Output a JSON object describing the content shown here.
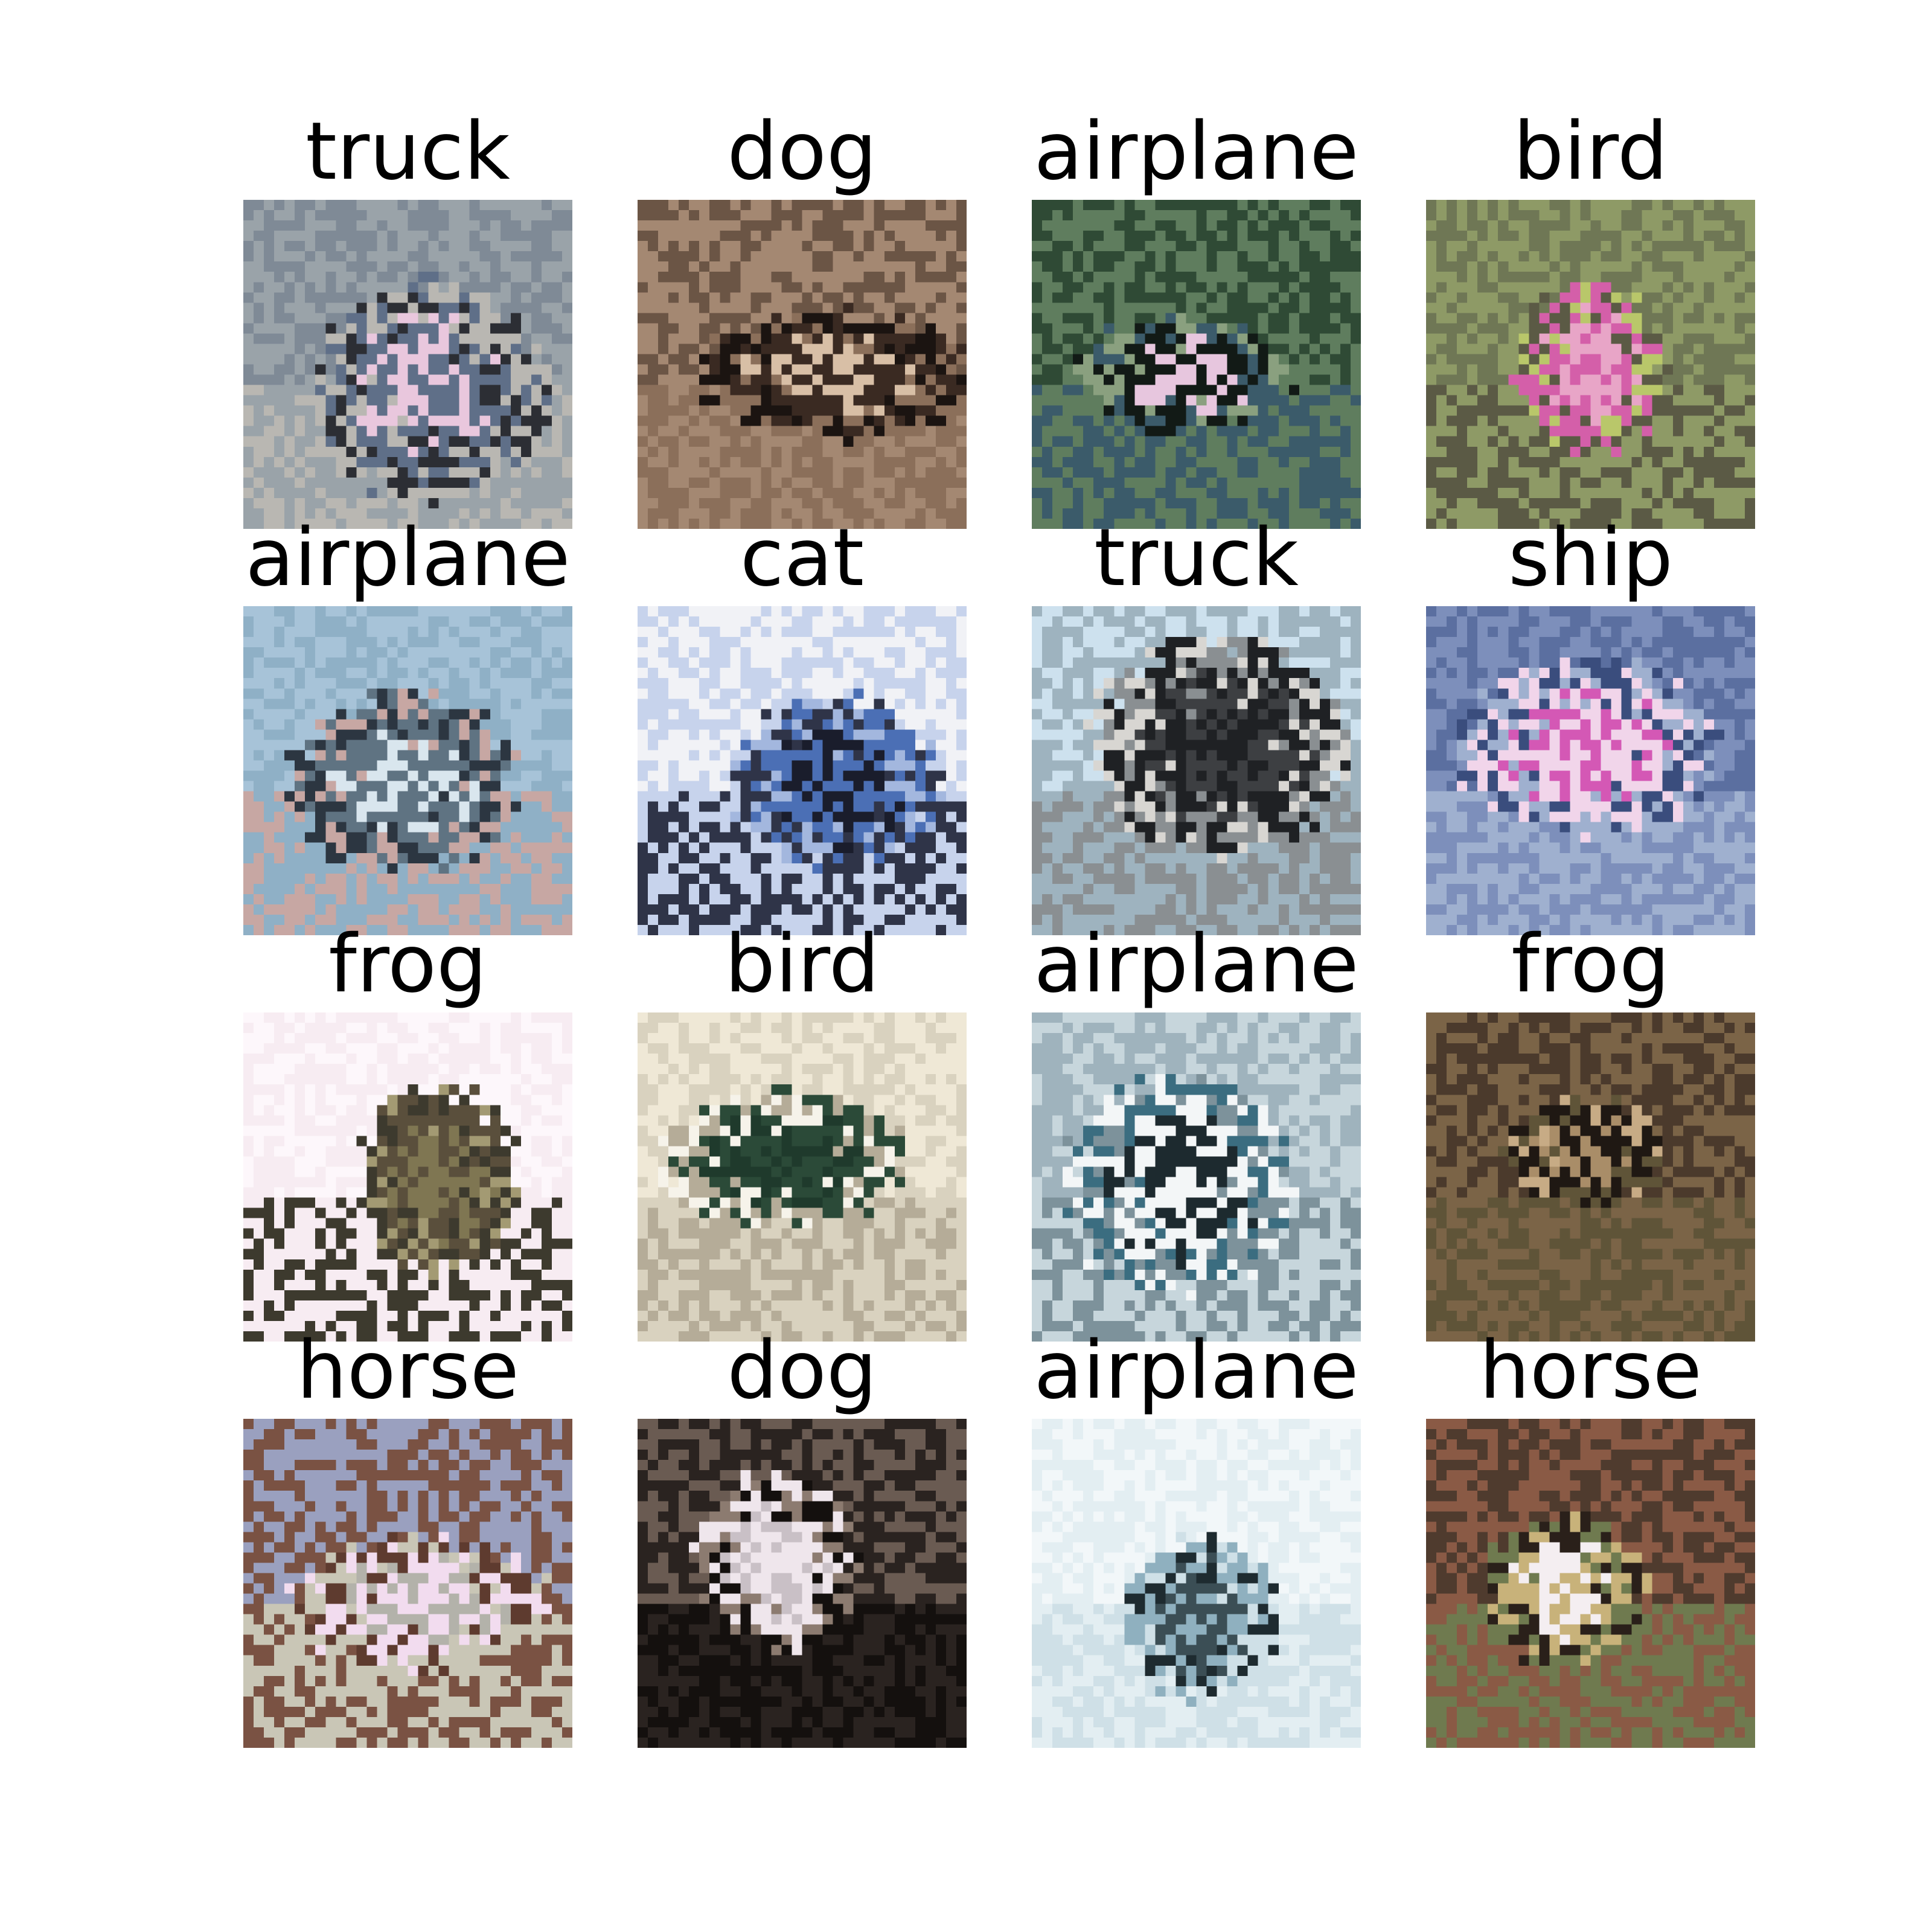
{
  "grid": {
    "columns": 4,
    "rows": 4,
    "cells": [
      {
        "label": "truck",
        "palette": [
          "#7f8a96",
          "#9aa3a9",
          "#e9c7dd",
          "#5f6f88",
          "#2c2e34",
          "#b9b7b2"
        ]
      },
      {
        "label": "dog",
        "palette": [
          "#6b5545",
          "#a48872",
          "#d8bfa6",
          "#3a2a22",
          "#1b1411",
          "#8b6f5a"
        ]
      },
      {
        "label": "airplane",
        "palette": [
          "#2f4a35",
          "#5f7d5e",
          "#e7c6de",
          "#121a16",
          "#8aa07f",
          "#3b5b6a"
        ]
      },
      {
        "label": "bird",
        "palette": [
          "#6f7755",
          "#8e9a66",
          "#e8a5c7",
          "#d45fa9",
          "#b9c76a",
          "#5b5a45"
        ]
      },
      {
        "label": "airplane",
        "palette": [
          "#a7c3d8",
          "#8fb0c6",
          "#d9e6ee",
          "#5f7382",
          "#2c3641",
          "#c7a7a3"
        ]
      },
      {
        "label": "cat",
        "palette": [
          "#f1f2f6",
          "#c7d3ec",
          "#1a1d2c",
          "#4b6fb5",
          "#a3b7de",
          "#2f3448"
        ]
      },
      {
        "label": "truck",
        "palette": [
          "#cde1ee",
          "#9eb3bf",
          "#3d3f42",
          "#1f2124",
          "#d8d6d2",
          "#8a8f92"
        ]
      },
      {
        "label": "ship",
        "palette": [
          "#5b6fa0",
          "#7d8fbb",
          "#d458b5",
          "#f1d5ea",
          "#3a4d7d",
          "#9fb0cf"
        ]
      },
      {
        "label": "frog",
        "palette": [
          "#fdf7fb",
          "#f7ecf2",
          "#7f7652",
          "#5a4f3c",
          "#a39a73",
          "#3d3a2e"
        ]
      },
      {
        "label": "bird",
        "palette": [
          "#efe8d6",
          "#d9d2bf",
          "#1f3a2c",
          "#2b4a38",
          "#f6f3ea",
          "#b5ac98"
        ]
      },
      {
        "label": "airplane",
        "palette": [
          "#9fb3bd",
          "#c7d6dc",
          "#1d2a2f",
          "#f3f6f7",
          "#3b6d80",
          "#7d929b"
        ]
      },
      {
        "label": "frog",
        "palette": [
          "#4b3a2c",
          "#7b6447",
          "#a98d68",
          "#1f1813",
          "#c7ab85",
          "#5f5438"
        ]
      },
      {
        "label": "horse",
        "palette": [
          "#9aa0bf",
          "#7a5243",
          "#b3b2aa",
          "#f2dcef",
          "#5e3b2f",
          "#c9c6b6"
        ]
      },
      {
        "label": "dog",
        "palette": [
          "#6a5b52",
          "#2a2320",
          "#c9c0c6",
          "#efe6ec",
          "#8c7b70",
          "#14100e"
        ]
      },
      {
        "label": "airplane",
        "palette": [
          "#f2f7f9",
          "#e3eef2",
          "#3b4e55",
          "#8fb0bf",
          "#1e2b30",
          "#cfe0e7"
        ]
      },
      {
        "label": "horse",
        "palette": [
          "#4f3b2e",
          "#8a5a45",
          "#f4eef1",
          "#c8b27a",
          "#2a201a",
          "#6f7a4f"
        ]
      }
    ]
  }
}
